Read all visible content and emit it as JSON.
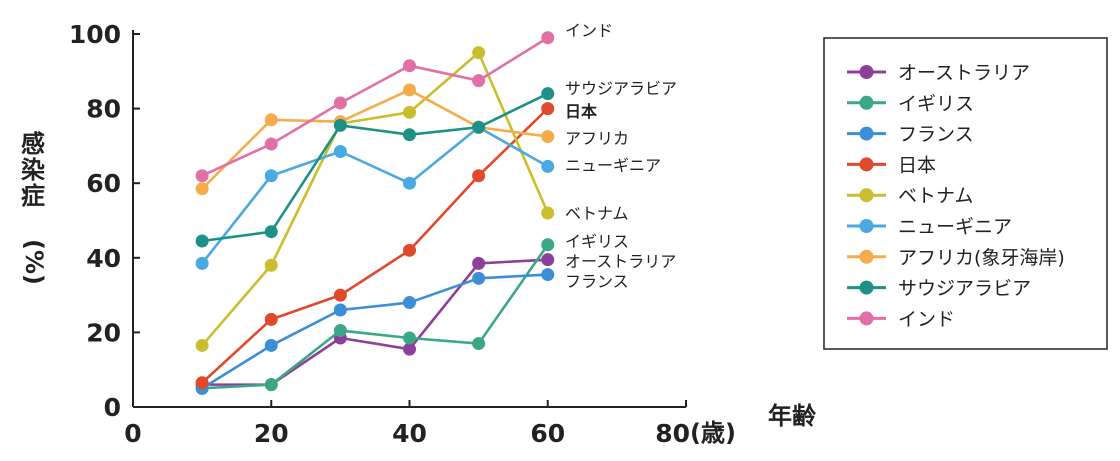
{
  "chart_data": {
    "type": "line",
    "xlabel": "年齢",
    "xunit": "(歳)",
    "ylabel_chars": [
      "感",
      "染",
      "症",
      "(%)"
    ],
    "xlim": [
      0,
      80
    ],
    "ylim": [
      0,
      100
    ],
    "xticks": [
      0,
      20,
      40,
      60,
      80
    ],
    "yticks": [
      0,
      20,
      40,
      60,
      80,
      100
    ],
    "grid": false,
    "legend_position": "right",
    "x": [
      10,
      20,
      30,
      40,
      50,
      60
    ],
    "series": [
      {
        "name": "オーストラリア",
        "end_label": "オーストラリア",
        "color": "#8e3f9a",
        "values": [
          6,
          6,
          18.5,
          15.5,
          38.5,
          39.5
        ]
      },
      {
        "name": "イギリス",
        "end_label": "イギリス",
        "color": "#3aa886",
        "values": [
          5,
          6,
          20.5,
          18.5,
          17,
          43.5
        ]
      },
      {
        "name": "フランス",
        "end_label": "フランス",
        "color": "#3c8fd6",
        "values": [
          5,
          16.5,
          26,
          28,
          34.5,
          35.5
        ]
      },
      {
        "name": "日本",
        "end_label": "日本",
        "color": "#e0492c",
        "values": [
          6.5,
          23.5,
          30,
          42,
          62,
          80
        ]
      },
      {
        "name": "ベトナム",
        "end_label": "ベトナム",
        "color": "#cbbe2e",
        "values": [
          16.5,
          38,
          76,
          79,
          95,
          52
        ]
      },
      {
        "name": "ニューギニア",
        "end_label": "ニューギニア",
        "color": "#4aa9e0",
        "values": [
          38.5,
          62,
          68.5,
          60,
          75,
          64.5
        ]
      },
      {
        "name": "アフリカ(象牙海岸)",
        "end_label": "アフリカ",
        "color": "#f4ad4a",
        "values": [
          58.5,
          77,
          76.5,
          85,
          75,
          72.5
        ]
      },
      {
        "name": "サウジアラビア",
        "end_label": "サウジアラビア",
        "color": "#1e9186",
        "values": [
          44.5,
          47,
          75.5,
          73,
          75,
          84
        ]
      },
      {
        "name": "インド",
        "end_label": "インド",
        "color": "#e26fa6",
        "values": [
          62,
          70.5,
          81.5,
          91.5,
          87.5,
          99
        ]
      }
    ]
  }
}
